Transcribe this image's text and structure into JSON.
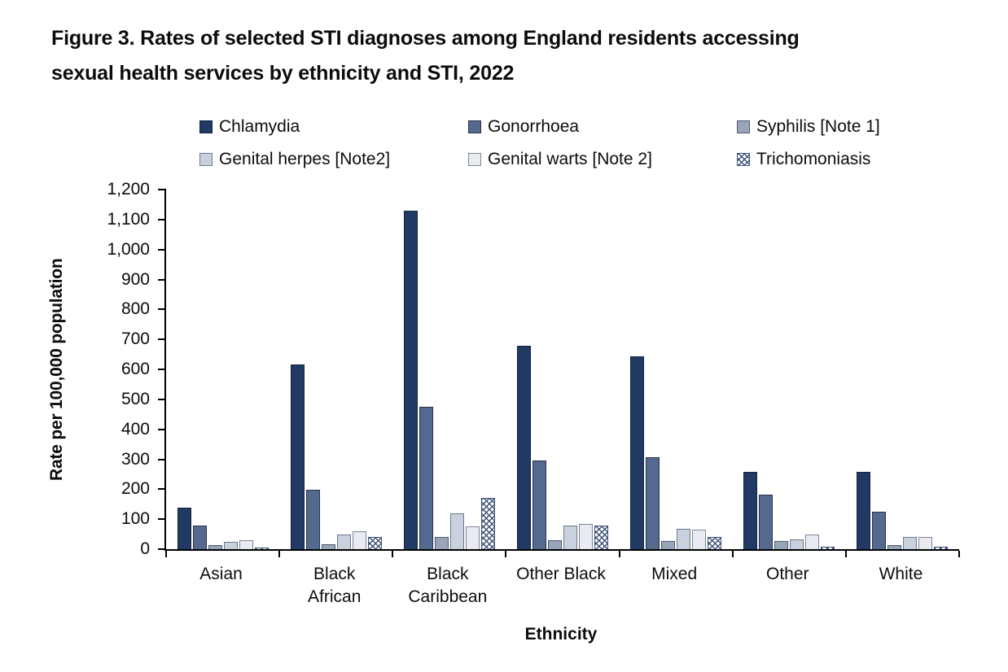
{
  "title": {
    "lines": [
      "Figure 3. Rates of selected STI diagnoses among England residents accessing",
      "sexual health services by ethnicity and STI, 2022"
    ]
  },
  "chart_data": {
    "type": "bar",
    "title": "Figure 3. Rates of selected STI diagnoses among England residents accessing sexual health services by ethnicity and STI, 2022",
    "xlabel": "Ethnicity",
    "ylabel": "Rate per 100,000 population",
    "ylim": [
      0,
      1200
    ],
    "ytick_step": 100,
    "ytick_labels": [
      "0",
      "100",
      "200",
      "300",
      "400",
      "500",
      "600",
      "700",
      "800",
      "900",
      "1,000",
      "1,100",
      "1,200"
    ],
    "grid": false,
    "legend_position": "top",
    "categories": [
      "Asian",
      "Black\nAfrican",
      "Black\nCaribbean",
      "Other Black",
      "Mixed",
      "Other",
      "White"
    ],
    "series": [
      {
        "name": "Chlamydia",
        "color": "#203A64",
        "border": "#14233F",
        "pattern": "solid",
        "values": [
          138,
          617,
          1130,
          678,
          643,
          259,
          259
        ]
      },
      {
        "name": "Gonorrhoea",
        "color": "#55688E",
        "border": "#26334E",
        "pattern": "solid",
        "values": [
          80,
          199,
          476,
          297,
          306,
          181,
          124
        ]
      },
      {
        "name": "Syphilis [Note 1]",
        "color": "#98A4B8",
        "border": "#4D5A70",
        "pattern": "solid",
        "values": [
          13,
          15,
          40,
          29,
          27,
          27,
          13
        ]
      },
      {
        "name": "Genital herpes [Note2]",
        "color": "#C9D1DE",
        "border": "#6E7887",
        "pattern": "solid",
        "values": [
          24,
          50,
          119,
          79,
          68,
          33,
          40
        ]
      },
      {
        "name": "Genital warts [Note 2]",
        "color": "#E9EBF1",
        "border": "#7E8695",
        "pattern": "solid",
        "values": [
          30,
          60,
          76,
          85,
          64,
          50,
          40
        ]
      },
      {
        "name": "Trichomoniasis",
        "color": "#FFFFFF",
        "border": "#3D5278",
        "pattern": "crosshatch",
        "values": [
          6,
          42,
          170,
          79,
          41,
          9,
          7
        ]
      }
    ]
  }
}
